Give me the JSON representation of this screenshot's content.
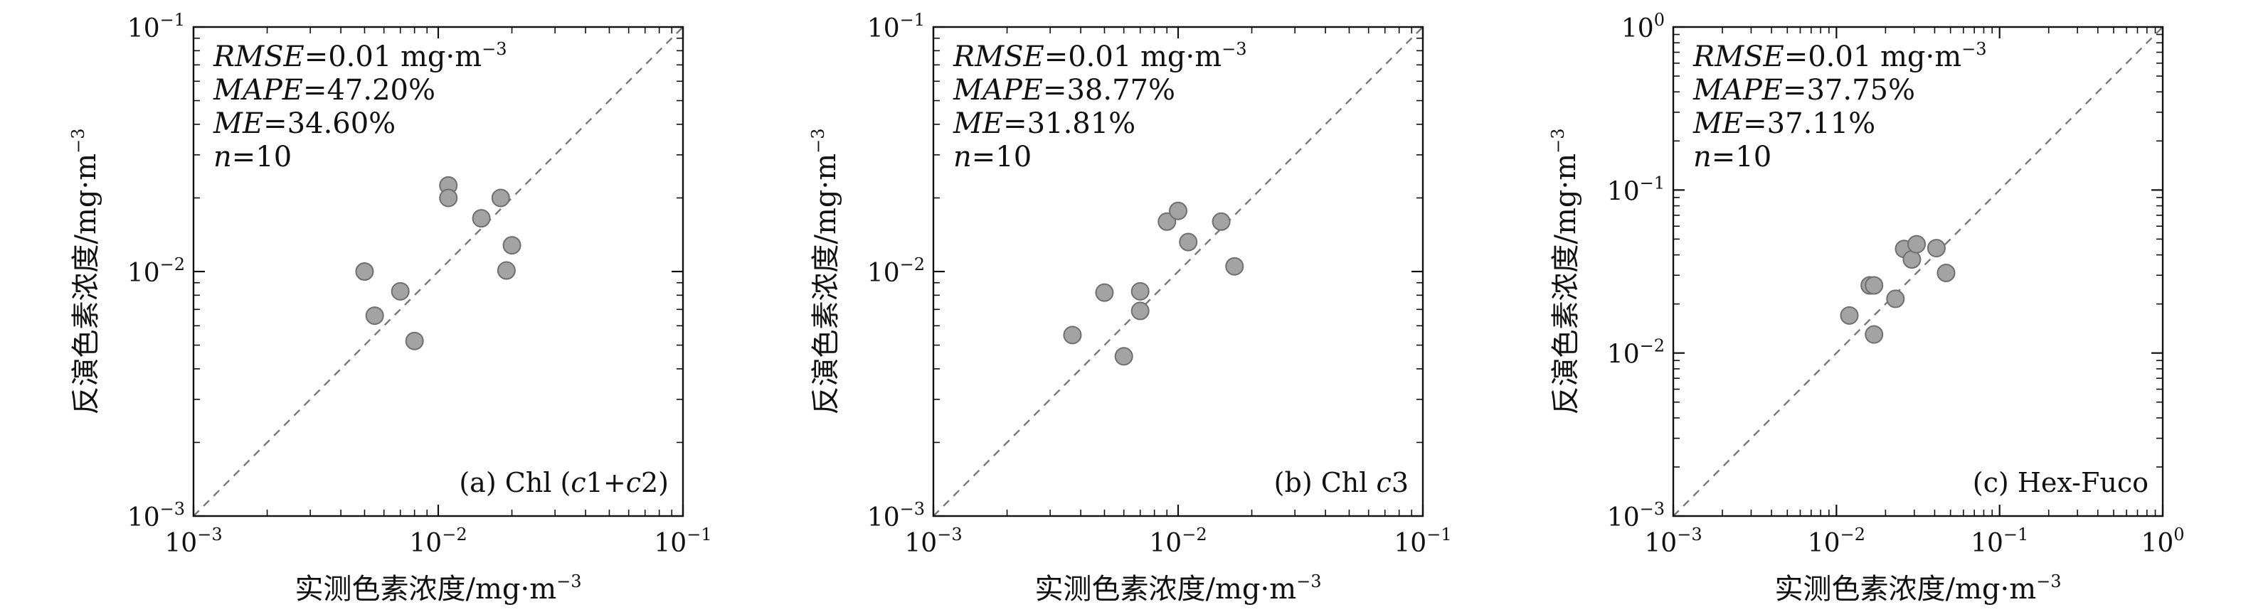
{
  "chart_data": [
    {
      "panel": "(a)",
      "type": "scatter",
      "xlabel": "实测色素浓度/mg·m",
      "ylabel": "反演色素浓度/mg·m",
      "unit_exponent": "−3",
      "label": {
        "text": "(a) Chl (",
        "parts": [
          "c",
          "1+",
          "c",
          "2)"
        ]
      },
      "log_scale": true,
      "xlim": [
        0.001,
        0.1
      ],
      "ylim": [
        0.001,
        0.1
      ],
      "xticks": [
        {
          "base": "10",
          "exp": "−3"
        },
        {
          "base": "10",
          "exp": "−2"
        },
        {
          "base": "10",
          "exp": "−1"
        }
      ],
      "yticks": [
        {
          "base": "10",
          "exp": "−3"
        },
        {
          "base": "10",
          "exp": "−2"
        },
        {
          "base": "10",
          "exp": "−1"
        }
      ],
      "reference_line": "1:1 dashed",
      "stats": [
        {
          "name": "RMSE",
          "value": "=0.01 mg·m",
          "exp": "−3"
        },
        {
          "name": "MAPE",
          "value": "=47.20%"
        },
        {
          "name": "ME",
          "value": "=34.60%"
        },
        {
          "name": "n",
          "value": "=10"
        }
      ],
      "points": [
        {
          "x": 0.005,
          "y": 0.01
        },
        {
          "x": 0.0055,
          "y": 0.0066
        },
        {
          "x": 0.007,
          "y": 0.0083
        },
        {
          "x": 0.008,
          "y": 0.0052
        },
        {
          "x": 0.011,
          "y": 0.0225
        },
        {
          "x": 0.011,
          "y": 0.02
        },
        {
          "x": 0.015,
          "y": 0.0165
        },
        {
          "x": 0.018,
          "y": 0.02
        },
        {
          "x": 0.019,
          "y": 0.0101
        },
        {
          "x": 0.02,
          "y": 0.0128
        }
      ]
    },
    {
      "panel": "(b)",
      "type": "scatter",
      "xlabel": "实测色素浓度/mg·m",
      "ylabel": "反演色素浓度/mg·m",
      "unit_exponent": "−3",
      "label": {
        "text": "(b) Chl ",
        "parts": [
          "c",
          "3"
        ]
      },
      "log_scale": true,
      "xlim": [
        0.001,
        0.1
      ],
      "ylim": [
        0.001,
        0.1
      ],
      "xticks": [
        {
          "base": "10",
          "exp": "−3"
        },
        {
          "base": "10",
          "exp": "−2"
        },
        {
          "base": "10",
          "exp": "−1"
        }
      ],
      "yticks": [
        {
          "base": "10",
          "exp": "−3"
        },
        {
          "base": "10",
          "exp": "−2"
        },
        {
          "base": "10",
          "exp": "−1"
        }
      ],
      "reference_line": "1:1 dashed",
      "stats": [
        {
          "name": "RMSE",
          "value": "=0.01 mg·m",
          "exp": "−3"
        },
        {
          "name": "MAPE",
          "value": "=38.77%"
        },
        {
          "name": "ME",
          "value": "=31.81%"
        },
        {
          "name": "n",
          "value": "=10"
        }
      ],
      "points": [
        {
          "x": 0.0037,
          "y": 0.0055
        },
        {
          "x": 0.005,
          "y": 0.0082
        },
        {
          "x": 0.006,
          "y": 0.0045
        },
        {
          "x": 0.007,
          "y": 0.0083
        },
        {
          "x": 0.007,
          "y": 0.0069
        },
        {
          "x": 0.009,
          "y": 0.016
        },
        {
          "x": 0.01,
          "y": 0.0177
        },
        {
          "x": 0.011,
          "y": 0.0132
        },
        {
          "x": 0.015,
          "y": 0.016
        },
        {
          "x": 0.017,
          "y": 0.0105
        }
      ]
    },
    {
      "panel": "(c)",
      "type": "scatter",
      "xlabel": "实测色素浓度/mg·m",
      "ylabel": "反演色素浓度/mg·m",
      "unit_exponent": "−3",
      "label": {
        "text": "(c) Hex-Fuco",
        "parts": []
      },
      "log_scale": true,
      "xlim": [
        0.001,
        1
      ],
      "ylim": [
        0.001,
        1
      ],
      "xticks": [
        {
          "base": "10",
          "exp": "−3"
        },
        {
          "base": "10",
          "exp": "−2"
        },
        {
          "base": "10",
          "exp": "−1"
        },
        {
          "base": "10",
          "exp": "0"
        }
      ],
      "yticks": [
        {
          "base": "10",
          "exp": "−3"
        },
        {
          "base": "10",
          "exp": "−2"
        },
        {
          "base": "10",
          "exp": "−1"
        },
        {
          "base": "10",
          "exp": "0"
        }
      ],
      "reference_line": "1:1 dashed",
      "stats": [
        {
          "name": "RMSE",
          "value": "=0.01 mg·m",
          "exp": "−3"
        },
        {
          "name": "MAPE",
          "value": "=37.75%"
        },
        {
          "name": "ME",
          "value": "=37.11%"
        },
        {
          "name": "n",
          "value": "=10"
        }
      ],
      "points": [
        {
          "x": 0.012,
          "y": 0.017
        },
        {
          "x": 0.016,
          "y": 0.026
        },
        {
          "x": 0.017,
          "y": 0.026
        },
        {
          "x": 0.017,
          "y": 0.013
        },
        {
          "x": 0.023,
          "y": 0.0215
        },
        {
          "x": 0.026,
          "y": 0.0435
        },
        {
          "x": 0.029,
          "y": 0.0375
        },
        {
          "x": 0.031,
          "y": 0.0465
        },
        {
          "x": 0.041,
          "y": 0.044
        },
        {
          "x": 0.047,
          "y": 0.031
        }
      ]
    }
  ]
}
